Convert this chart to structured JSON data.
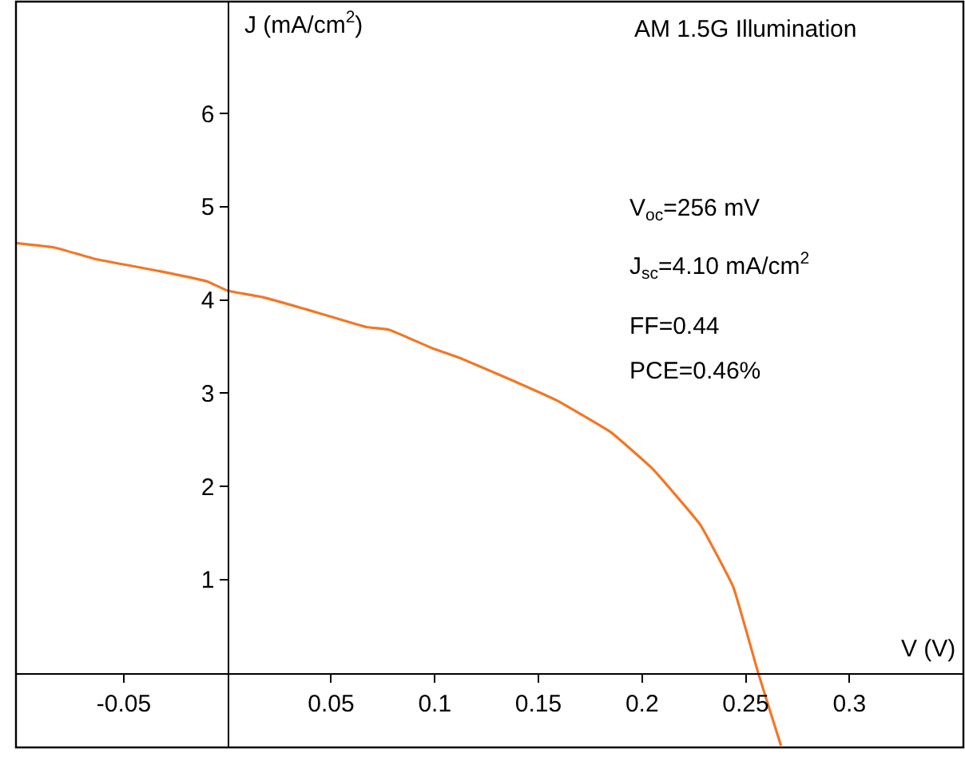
{
  "chart_data": {
    "type": "line",
    "xlabel": "V (V)",
    "ylabel": "J (mA/cm$^{2}$)",
    "x": [
      -0.102,
      -0.083,
      -0.064,
      -0.033,
      -0.01,
      0,
      0.017,
      0.044,
      0.067,
      0.078,
      0.098,
      0.113,
      0.136,
      0.159,
      0.185,
      0.205,
      0.228,
      0.244,
      0.256,
      0.267
    ],
    "series": [
      {
        "color": "#f07828",
        "values": [
          4.61,
          4.56,
          4.44,
          4.31,
          4.2,
          4.1,
          4.03,
          3.86,
          3.71,
          3.68,
          3.49,
          3.37,
          3.15,
          2.92,
          2.58,
          2.19,
          1.59,
          0.92,
          0,
          -0.78
        ]
      }
    ],
    "xlim": [
      -0.102,
      0.355
    ],
    "ylim": [
      -0.8,
      7.2
    ],
    "xticks": [
      -0.05,
      0.05,
      0.1,
      0.15,
      0.2,
      0.25,
      0.3
    ],
    "yticks": [
      1,
      2,
      3,
      4,
      5,
      6
    ],
    "marker": "none",
    "line_style": "solid",
    "annotations": [
      "AM 1.5G Illumination",
      "V$_{oc}$=256 mV",
      "J$_{sc}$=4.10 mA/cm$^{2}$",
      "FF=0.44",
      "PCE=0.46%"
    ]
  }
}
